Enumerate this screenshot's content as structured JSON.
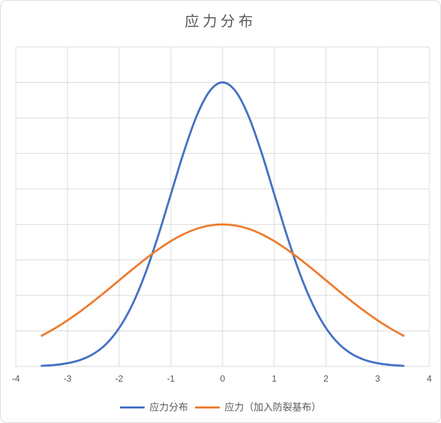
{
  "chart_data": {
    "type": "line",
    "title": "应力分布",
    "x": [
      -3.5,
      -3.25,
      -3,
      -2.75,
      -2.5,
      -2.25,
      -2,
      -1.75,
      -1.5,
      -1.25,
      -1,
      -0.75,
      -0.5,
      -0.25,
      0,
      0.25,
      0.5,
      0.75,
      1,
      1.25,
      1.5,
      1.75,
      2,
      2.25,
      2.5,
      2.75,
      3,
      3.25,
      3.5
    ],
    "series": [
      {
        "name": "应力分布",
        "color": "#4472C4",
        "values": [
          0.017,
          0.041,
          0.089,
          0.183,
          0.351,
          0.636,
          1.083,
          1.73,
          2.597,
          3.663,
          4.852,
          6.039,
          7.06,
          7.754,
          8.0,
          7.754,
          7.06,
          6.039,
          4.852,
          3.663,
          2.597,
          1.73,
          1.083,
          0.636,
          0.351,
          0.183,
          0.089,
          0.041,
          0.017
        ]
      },
      {
        "name": "应力（加入防裂基布）",
        "color": "#ED7D31",
        "values": [
          0.865,
          1.068,
          1.299,
          1.554,
          1.831,
          2.125,
          2.426,
          2.728,
          3.019,
          3.29,
          3.53,
          3.728,
          3.877,
          3.969,
          4.0,
          3.969,
          3.877,
          3.728,
          3.53,
          3.29,
          3.019,
          2.728,
          2.426,
          2.125,
          1.831,
          1.554,
          1.299,
          1.068,
          0.865
        ]
      }
    ],
    "xlim": [
      -4,
      4
    ],
    "ylim": [
      0,
      9
    ],
    "x_ticks": [
      -4,
      -3,
      -2,
      -1,
      0,
      1,
      2,
      3,
      4
    ],
    "y_gridline_step": 1,
    "grid": true,
    "legend_position": "bottom",
    "colors": {
      "grid": "#D9D9D9",
      "text": "#595959",
      "frame_border": "#DCDCDC"
    }
  }
}
